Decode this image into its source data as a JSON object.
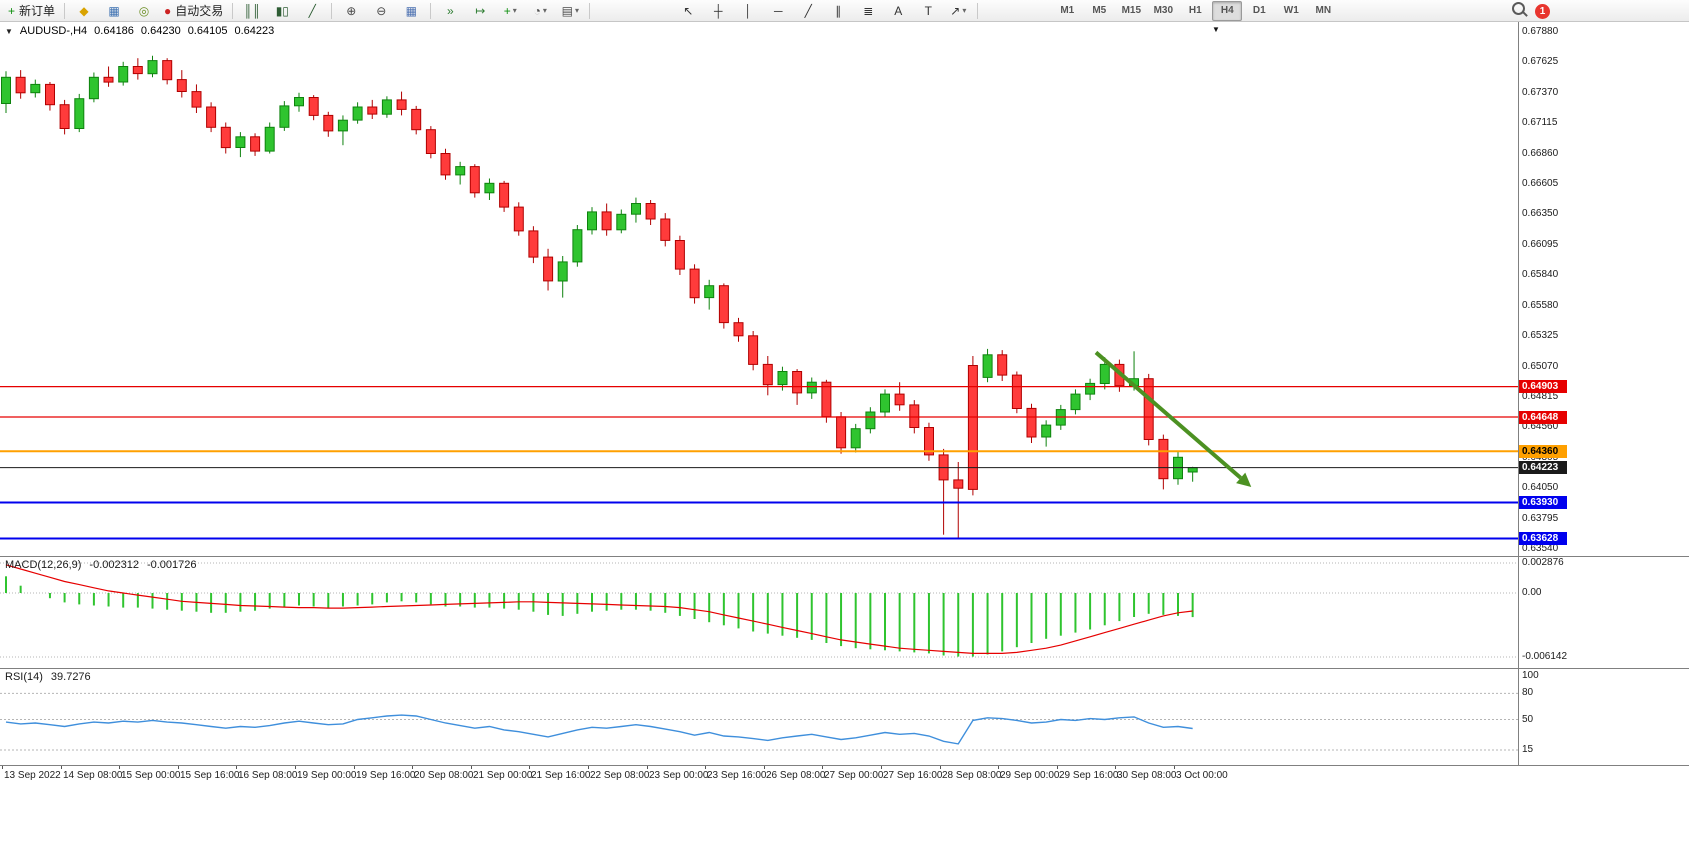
{
  "toolbar": {
    "notification_badge": "1",
    "icons": {
      "dropdown": "▾",
      "symbol_dropdown": "▼",
      "object_marker": "▼"
    },
    "groups": [
      {
        "items": [
          {
            "name": "new-order-button",
            "glyph": "+",
            "glyph_color": "#0e8f0e",
            "label": "新订单"
          }
        ]
      },
      {
        "items": [
          {
            "name": "profiles-button",
            "glyph": "◆",
            "glyph_color": "#d9a300"
          },
          {
            "name": "market-watch-button",
            "glyph": "▦",
            "glyph_color": "#3a6fb0"
          },
          {
            "name": "data-window-button",
            "glyph": "◎",
            "glyph_color": "#6b8e23"
          },
          {
            "name": "autotrading-button",
            "glyph": "●",
            "glyph_color": "#cc2222",
            "label": "自动交易"
          }
        ]
      },
      {
        "items": [
          {
            "name": "bar-chart-button",
            "glyph": "║║",
            "glyph_color": "#2e5d34"
          },
          {
            "name": "candlestick-chart-button",
            "glyph": "▮▯",
            "glyph_color": "#2e5d34"
          },
          {
            "name": "line-chart-button",
            "glyph": "╱",
            "glyph_color": "#2e5d34"
          }
        ]
      },
      {
        "items": [
          {
            "name": "zoom-in-button",
            "glyph": "⊕",
            "glyph_color": "#4a4a4a"
          },
          {
            "name": "zoom-out-button",
            "glyph": "⊖",
            "glyph_color": "#4a4a4a"
          },
          {
            "name": "tile-windows-button",
            "glyph": "▦",
            "glyph_color": "#4a6fb0"
          }
        ]
      },
      {
        "items": [
          {
            "name": "auto-scroll-button",
            "glyph": "»",
            "glyph_color": "#2e7d32"
          },
          {
            "name": "chart-shift-button",
            "glyph": "↦",
            "glyph_color": "#2e7d32"
          },
          {
            "name": "indicators-button",
            "glyph": "+",
            "glyph_color": "#0e8f0e",
            "dropdown": true
          },
          {
            "name": "periods-button",
            "glyph": "◔",
            "glyph_color": "#4a4a4a",
            "dropdown": true
          },
          {
            "name": "templates-button",
            "glyph": "▤",
            "glyph_color": "#4a4a4a",
            "dropdown": true
          }
        ]
      },
      {
        "cls": "g-draw",
        "items": [
          {
            "name": "cursor-button",
            "glyph": "↖",
            "glyph_color": "#333333"
          },
          {
            "name": "crosshair-button",
            "glyph": "┼",
            "glyph_color": "#333333"
          },
          {
            "name": "vertical-line-button",
            "glyph": "│",
            "glyph_color": "#333333"
          },
          {
            "name": "horizontal-line-button",
            "glyph": "─",
            "glyph_color": "#333333"
          },
          {
            "name": "trendline-button",
            "glyph": "╱",
            "glyph_color": "#333333"
          },
          {
            "name": "channel-button",
            "glyph": "∥",
            "glyph_color": "#333333"
          },
          {
            "name": "fibonacci-button",
            "glyph": "≣",
            "glyph_color": "#333333"
          },
          {
            "name": "text-button",
            "glyph": "A",
            "glyph_color": "#333333"
          },
          {
            "name": "text-label-button",
            "glyph": "T",
            "glyph_color": "#333333"
          },
          {
            "name": "arrows-button",
            "glyph": "↗",
            "glyph_color": "#333333",
            "dropdown": true
          }
        ]
      },
      {
        "cls": "g-tf",
        "items": [
          {
            "name": "tf-button-m1",
            "text": "M1"
          },
          {
            "name": "tf-button-m5",
            "text": "M5"
          },
          {
            "name": "tf-button-m15",
            "text": "M15"
          },
          {
            "name": "tf-button-m30",
            "text": "M30"
          },
          {
            "name": "tf-button-h1",
            "text": "H1"
          },
          {
            "name": "tf-button-h4",
            "text": "H4",
            "active": true
          },
          {
            "name": "tf-button-d1",
            "text": "D1"
          },
          {
            "name": "tf-button-w1",
            "text": "W1"
          },
          {
            "name": "tf-button-mn",
            "text": "MN"
          }
        ]
      }
    ]
  },
  "chart": {
    "header": {
      "symbol": "AUDUSD-,H4",
      "open": "0.64186",
      "high": "0.64230",
      "low": "0.64105",
      "close": "0.64223"
    }
  },
  "chart_data": {
    "type": "candlestick",
    "symbol": "AUDUSD-",
    "timeframe": "H4",
    "price_axis": {
      "max": 0.6788,
      "min": 0.6354,
      "labels": [
        "0.67880",
        "0.67625",
        "0.67370",
        "0.67115",
        "0.66860",
        "0.66605",
        "0.66350",
        "0.66095",
        "0.65840",
        "0.65580",
        "0.65325",
        "0.65070",
        "0.64815",
        "0.64560",
        "0.64305",
        "0.64050",
        "0.63795",
        "0.63540"
      ]
    },
    "time_axis": {
      "labels": [
        "13 Sep 2022",
        "14 Sep 08:00",
        "15 Sep 00:00",
        "15 Sep 16:00",
        "16 Sep 08:00",
        "19 Sep 00:00",
        "19 Sep 16:00",
        "20 Sep 08:00",
        "21 Sep 00:00",
        "21 Sep 16:00",
        "22 Sep 08:00",
        "23 Sep 00:00",
        "23 Sep 16:00",
        "26 Sep 08:00",
        "27 Sep 00:00",
        "27 Sep 16:00",
        "28 Sep 08:00",
        "29 Sep 00:00",
        "29 Sep 16:00",
        "30 Sep 08:00",
        "3 Oct 00:00"
      ]
    },
    "style": {
      "up_fill": "#2fc42f",
      "up_stroke": "#0e820e",
      "down_fill": "#ff3b3b",
      "down_stroke": "#b00000",
      "grid_dotted": "#b5b5b5"
    },
    "candles": [
      [
        0.6728,
        0.6755,
        0.672,
        0.675
      ],
      [
        0.675,
        0.6756,
        0.6732,
        0.6737
      ],
      [
        0.6737,
        0.6748,
        0.6733,
        0.6744
      ],
      [
        0.6744,
        0.6746,
        0.6722,
        0.6727
      ],
      [
        0.6727,
        0.6731,
        0.6702,
        0.6707
      ],
      [
        0.6707,
        0.6736,
        0.6704,
        0.6732
      ],
      [
        0.6732,
        0.6754,
        0.6729,
        0.675
      ],
      [
        0.675,
        0.6759,
        0.6742,
        0.6746
      ],
      [
        0.6746,
        0.6763,
        0.6743,
        0.6759
      ],
      [
        0.6759,
        0.6766,
        0.6748,
        0.6753
      ],
      [
        0.6753,
        0.6768,
        0.675,
        0.6764
      ],
      [
        0.6764,
        0.6766,
        0.6744,
        0.6748
      ],
      [
        0.6748,
        0.6756,
        0.6733,
        0.6738
      ],
      [
        0.6738,
        0.6744,
        0.672,
        0.6725
      ],
      [
        0.6725,
        0.6729,
        0.6704,
        0.6708
      ],
      [
        0.6708,
        0.6712,
        0.6686,
        0.6691
      ],
      [
        0.6691,
        0.6704,
        0.6683,
        0.67
      ],
      [
        0.67,
        0.6703,
        0.6684,
        0.6688
      ],
      [
        0.6688,
        0.6712,
        0.6686,
        0.6708
      ],
      [
        0.6708,
        0.673,
        0.6705,
        0.6726
      ],
      [
        0.6726,
        0.6737,
        0.6721,
        0.6733
      ],
      [
        0.6733,
        0.6735,
        0.6714,
        0.6718
      ],
      [
        0.6718,
        0.6721,
        0.67,
        0.6705
      ],
      [
        0.6705,
        0.6718,
        0.6693,
        0.6714
      ],
      [
        0.6714,
        0.6729,
        0.6711,
        0.6725
      ],
      [
        0.6725,
        0.6731,
        0.6715,
        0.6719
      ],
      [
        0.6719,
        0.6734,
        0.6716,
        0.6731
      ],
      [
        0.6731,
        0.6738,
        0.6718,
        0.6723
      ],
      [
        0.6723,
        0.6726,
        0.6702,
        0.6706
      ],
      [
        0.6706,
        0.6709,
        0.6682,
        0.6686
      ],
      [
        0.6686,
        0.669,
        0.6664,
        0.6668
      ],
      [
        0.6668,
        0.6679,
        0.666,
        0.6675
      ],
      [
        0.6675,
        0.6677,
        0.6649,
        0.6653
      ],
      [
        0.6653,
        0.6665,
        0.6647,
        0.6661
      ],
      [
        0.6661,
        0.6663,
        0.6637,
        0.6641
      ],
      [
        0.6641,
        0.6645,
        0.6617,
        0.6621
      ],
      [
        0.6621,
        0.6625,
        0.6594,
        0.6599
      ],
      [
        0.6599,
        0.6606,
        0.6571,
        0.6579
      ],
      [
        0.6579,
        0.66,
        0.6565,
        0.6595
      ],
      [
        0.6595,
        0.6626,
        0.6591,
        0.6622
      ],
      [
        0.6622,
        0.6641,
        0.6618,
        0.6637
      ],
      [
        0.6637,
        0.6644,
        0.6617,
        0.6622
      ],
      [
        0.6622,
        0.6639,
        0.6619,
        0.6635
      ],
      [
        0.6635,
        0.6649,
        0.6628,
        0.6644
      ],
      [
        0.6644,
        0.6647,
        0.6626,
        0.6631
      ],
      [
        0.6631,
        0.6636,
        0.6608,
        0.6613
      ],
      [
        0.6613,
        0.6617,
        0.6584,
        0.6589
      ],
      [
        0.6589,
        0.6593,
        0.656,
        0.6565
      ],
      [
        0.6565,
        0.658,
        0.6555,
        0.6575
      ],
      [
        0.6575,
        0.6577,
        0.6539,
        0.6544
      ],
      [
        0.6544,
        0.6548,
        0.6528,
        0.6533
      ],
      [
        0.6533,
        0.6537,
        0.6504,
        0.6509
      ],
      [
        0.6509,
        0.6516,
        0.6483,
        0.6492
      ],
      [
        0.6492,
        0.6507,
        0.6487,
        0.6503
      ],
      [
        0.6503,
        0.6505,
        0.6475,
        0.6485
      ],
      [
        0.6485,
        0.6498,
        0.648,
        0.6494
      ],
      [
        0.6494,
        0.6496,
        0.646,
        0.6465
      ],
      [
        0.6465,
        0.6469,
        0.6434,
        0.6439
      ],
      [
        0.6439,
        0.6459,
        0.6435,
        0.6455
      ],
      [
        0.6455,
        0.6473,
        0.6451,
        0.6469
      ],
      [
        0.6469,
        0.6488,
        0.6465,
        0.6484
      ],
      [
        0.6484,
        0.6494,
        0.647,
        0.6475
      ],
      [
        0.6475,
        0.6479,
        0.6451,
        0.6456
      ],
      [
        0.6456,
        0.646,
        0.6428,
        0.6433
      ],
      [
        0.6433,
        0.6438,
        0.6366,
        0.6412
      ],
      [
        0.6412,
        0.6427,
        0.6363,
        0.6405
      ],
      [
        0.6508,
        0.6516,
        0.6399,
        0.6404
      ],
      [
        0.6498,
        0.6522,
        0.6494,
        0.6517
      ],
      [
        0.6517,
        0.6521,
        0.6495,
        0.65
      ],
      [
        0.65,
        0.6503,
        0.6468,
        0.6472
      ],
      [
        0.6472,
        0.6476,
        0.6443,
        0.6448
      ],
      [
        0.6448,
        0.6462,
        0.644,
        0.6458
      ],
      [
        0.6458,
        0.6475,
        0.6454,
        0.6471
      ],
      [
        0.6471,
        0.6488,
        0.6467,
        0.6484
      ],
      [
        0.6484,
        0.6497,
        0.6479,
        0.6493
      ],
      [
        0.6493,
        0.6515,
        0.6488,
        0.6509
      ],
      [
        0.6509,
        0.6513,
        0.6486,
        0.6491
      ],
      [
        0.6491,
        0.652,
        0.6487,
        0.6497
      ],
      [
        0.6497,
        0.6501,
        0.6441,
        0.6446
      ],
      [
        0.6446,
        0.645,
        0.6404,
        0.6413
      ],
      [
        0.6413,
        0.6436,
        0.6408,
        0.6431
      ],
      [
        0.64186,
        0.6423,
        0.64105,
        0.64223
      ]
    ],
    "hlines": [
      {
        "price": 0.64903,
        "label": "0.64903",
        "color": "#e60000",
        "width": 1.2,
        "text": "#ffffff"
      },
      {
        "price": 0.64648,
        "label": "0.64648",
        "color": "#e60000",
        "width": 1.2,
        "text": "#ffffff"
      },
      {
        "price": 0.6436,
        "label": "0.64360",
        "color": "#ffa000",
        "width": 2,
        "text": "#000000"
      },
      {
        "price": 0.64223,
        "label": "0.64223",
        "color": "#1a1a1a",
        "width": 1,
        "text": "#ffffff",
        "role": "current-price"
      },
      {
        "price": 0.6393,
        "label": "0.63930",
        "color": "#0000ee",
        "width": 2,
        "text": "#ffffff"
      },
      {
        "price": 0.63628,
        "label": "0.63628",
        "color": "#0000ee",
        "width": 2,
        "text": "#ffffff"
      }
    ],
    "arrow_annotation": {
      "from_index": 74.4,
      "from_price": 0.6519,
      "to_index": 85,
      "to_price": 0.6406,
      "color": "#4c9122",
      "width": 4
    },
    "macd": {
      "label": "MACD(12,26,9)",
      "value_main": "-0.002312",
      "value_signal": "-0.001726",
      "max": 0.002876,
      "min": -0.006142,
      "scale_labels": [
        "0.002876",
        "0.00",
        "-0.006142"
      ],
      "hist_color": "#2fc42f",
      "signal_color": "#e60000",
      "histogram": [
        0.0016,
        0.0007,
        0.0,
        -0.0005,
        -0.0009,
        -0.0011,
        -0.0012,
        -0.0013,
        -0.0014,
        -0.0014,
        -0.0015,
        -0.0016,
        -0.0017,
        -0.0018,
        -0.0019,
        -0.0019,
        -0.0018,
        -0.0017,
        -0.0015,
        -0.0013,
        -0.0012,
        -0.0013,
        -0.0014,
        -0.0013,
        -0.0012,
        -0.0011,
        -0.0009,
        -0.0008,
        -0.0009,
        -0.0011,
        -0.0013,
        -0.0013,
        -0.0014,
        -0.0014,
        -0.0015,
        -0.0016,
        -0.0018,
        -0.0021,
        -0.0022,
        -0.002,
        -0.0018,
        -0.0017,
        -0.0016,
        -0.0016,
        -0.0017,
        -0.0019,
        -0.0022,
        -0.0025,
        -0.0028,
        -0.0031,
        -0.0034,
        -0.0037,
        -0.0039,
        -0.0041,
        -0.0043,
        -0.0045,
        -0.0048,
        -0.0051,
        -0.0053,
        -0.0054,
        -0.0055,
        -0.0056,
        -0.0057,
        -0.0058,
        -0.006,
        -0.0061,
        -0.0061,
        -0.0059,
        -0.0056,
        -0.0052,
        -0.0048,
        -0.0044,
        -0.0041,
        -0.0038,
        -0.0035,
        -0.0031,
        -0.0027,
        -0.0023,
        -0.002,
        -0.0021,
        -0.0022,
        -0.002312
      ],
      "signal": [
        0.0027,
        0.0023,
        0.0019,
        0.0015,
        0.0011,
        0.0008,
        0.0005,
        0.0002,
        0.0,
        -0.0002,
        -0.0004,
        -0.0006,
        -0.0008,
        -0.0009,
        -0.001,
        -0.0011,
        -0.0012,
        -0.00125,
        -0.0013,
        -0.00135,
        -0.0014,
        -0.0014,
        -0.00145,
        -0.00145,
        -0.0014,
        -0.00135,
        -0.0013,
        -0.00125,
        -0.0012,
        -0.00115,
        -0.0011,
        -0.00105,
        -0.001,
        -0.00095,
        -0.0009,
        -0.00085,
        -0.00085,
        -0.0009,
        -0.00095,
        -0.001,
        -0.00105,
        -0.0011,
        -0.00115,
        -0.0012,
        -0.00125,
        -0.0013,
        -0.0014,
        -0.0016,
        -0.0018,
        -0.0021,
        -0.0024,
        -0.0027,
        -0.003,
        -0.0033,
        -0.0036,
        -0.0039,
        -0.0042,
        -0.0045,
        -0.0047,
        -0.0049,
        -0.0051,
        -0.0053,
        -0.0054,
        -0.0055,
        -0.0056,
        -0.0057,
        -0.0058,
        -0.0058,
        -0.0058,
        -0.0057,
        -0.0055,
        -0.0053,
        -0.005,
        -0.0046,
        -0.0042,
        -0.0038,
        -0.0034,
        -0.003,
        -0.0026,
        -0.0022,
        -0.0019,
        -0.001726
      ]
    },
    "rsi": {
      "label": "RSI(14)",
      "value": "39.7276",
      "color": "#3f8fdc",
      "levels": [
        80,
        50,
        15
      ],
      "scale_labels": [
        "100",
        "80",
        "50",
        "15"
      ],
      "values": [
        47,
        45,
        46,
        44,
        42,
        45,
        47,
        46,
        48,
        47,
        49,
        47,
        46,
        44,
        42,
        40,
        42,
        41,
        43,
        46,
        48,
        46,
        44,
        45,
        50,
        52,
        54,
        55,
        54,
        50,
        46,
        43,
        40,
        42,
        38,
        36,
        33,
        30,
        34,
        38,
        41,
        40,
        42,
        44,
        42,
        39,
        36,
        32,
        35,
        31,
        30,
        28,
        26,
        29,
        31,
        33,
        30,
        27,
        29,
        32,
        35,
        33,
        34,
        31,
        25,
        22,
        49,
        52,
        51,
        49,
        46,
        47,
        50,
        49,
        51,
        50,
        52,
        53,
        46,
        41,
        42,
        39.7
      ]
    }
  }
}
